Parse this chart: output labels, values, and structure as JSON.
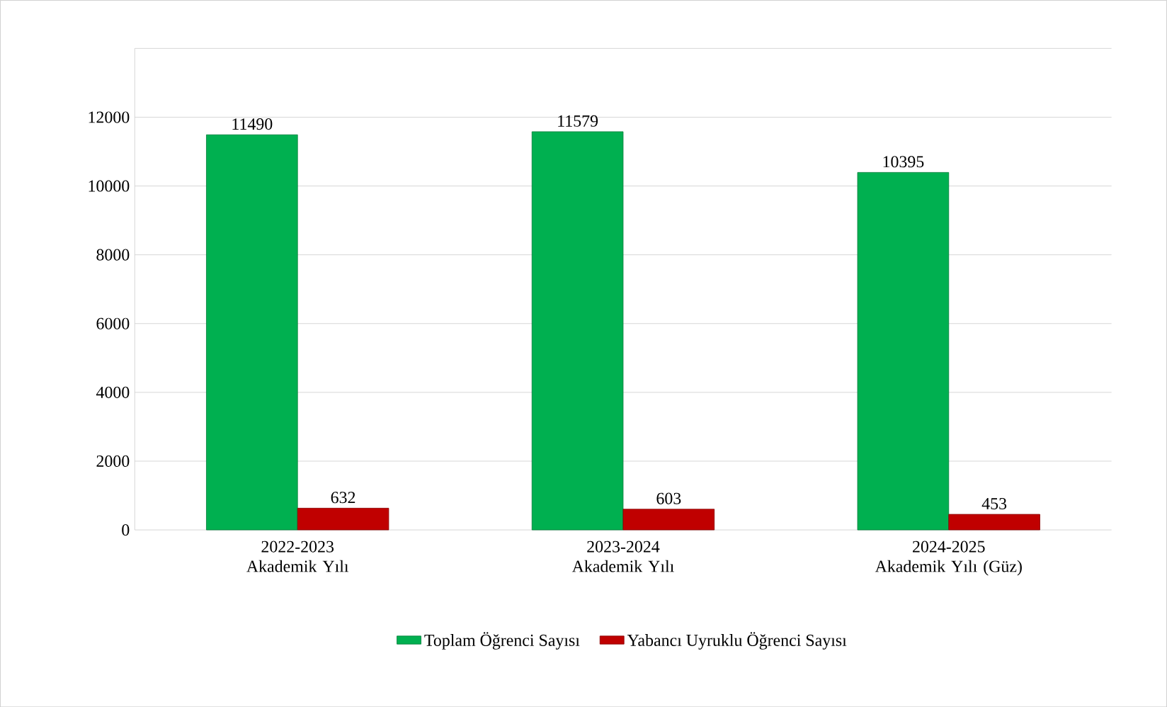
{
  "chart_data": {
    "type": "bar",
    "categories": [
      "2022-2023 Akademik Yılı",
      "2023-2024 Akademik Yılı",
      "2024-2025 Akademik Yılı (Güz)"
    ],
    "series": [
      {
        "name": "Toplam Öğrenci Sayısı",
        "color": "#00b050",
        "values": [
          11490,
          11579,
          10395
        ]
      },
      {
        "name": "Yabancı Uyruklu Öğrenci Sayısı",
        "color": "#c00000",
        "values": [
          632,
          603,
          453
        ]
      }
    ],
    "ylim": [
      0,
      14000
    ],
    "yticks": [
      0,
      2000,
      4000,
      6000,
      8000,
      10000,
      12000
    ],
    "grid": "y",
    "legend": "bottom",
    "data_labels": true
  }
}
